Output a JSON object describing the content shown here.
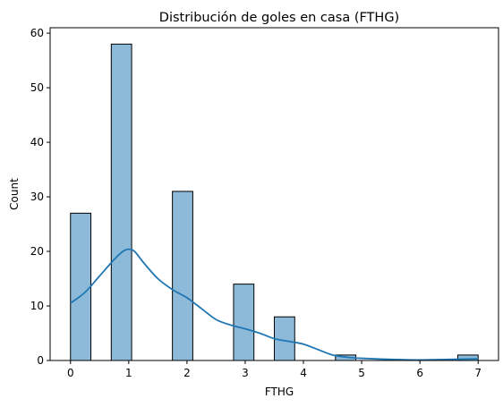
{
  "chart_data": {
    "type": "bar",
    "title": "Distribución de goles en casa (FTHG)",
    "xlabel": "FTHG",
    "ylabel": "Count",
    "xlim": [
      -0.35,
      7.35
    ],
    "ylim": [
      0,
      61
    ],
    "x_ticks": [
      "0",
      "1",
      "2",
      "3",
      "4",
      "5",
      "6",
      "7"
    ],
    "y_ticks": [
      "0",
      "10",
      "20",
      "30",
      "40",
      "50",
      "60"
    ],
    "bins": [
      {
        "x0": 0.0,
        "x1": 0.35,
        "count": 27
      },
      {
        "x0": 0.35,
        "x1": 0.7,
        "count": 0
      },
      {
        "x0": 0.7,
        "x1": 1.05,
        "count": 58
      },
      {
        "x0": 1.05,
        "x1": 1.4,
        "count": 0
      },
      {
        "x0": 1.4,
        "x1": 1.75,
        "count": 0
      },
      {
        "x0": 1.75,
        "x1": 2.1,
        "count": 31
      },
      {
        "x0": 2.1,
        "x1": 2.45,
        "count": 0
      },
      {
        "x0": 2.45,
        "x1": 2.8,
        "count": 0
      },
      {
        "x0": 2.8,
        "x1": 3.15,
        "count": 14
      },
      {
        "x0": 3.15,
        "x1": 3.5,
        "count": 0
      },
      {
        "x0": 3.5,
        "x1": 3.85,
        "count": 8
      },
      {
        "x0": 3.85,
        "x1": 4.2,
        "count": 0
      },
      {
        "x0": 4.2,
        "x1": 4.55,
        "count": 0
      },
      {
        "x0": 4.55,
        "x1": 4.9,
        "count": 1
      },
      {
        "x0": 4.9,
        "x1": 5.25,
        "count": 0
      },
      {
        "x0": 5.25,
        "x1": 5.6,
        "count": 0
      },
      {
        "x0": 5.6,
        "x1": 5.95,
        "count": 0
      },
      {
        "x0": 5.95,
        "x1": 6.3,
        "count": 0
      },
      {
        "x0": 6.3,
        "x1": 6.65,
        "count": 0
      },
      {
        "x0": 6.65,
        "x1": 7.0,
        "count": 1
      }
    ],
    "kde": {
      "x": [
        0.0,
        0.25,
        0.5,
        0.75,
        0.9,
        1.0,
        1.1,
        1.25,
        1.5,
        1.75,
        2.0,
        2.25,
        2.5,
        2.75,
        3.0,
        3.25,
        3.5,
        3.75,
        4.0,
        4.25,
        4.5,
        4.75,
        5.0,
        5.5,
        6.0,
        6.5,
        7.0
      ],
      "y": [
        10.5,
        12.5,
        15.5,
        18.5,
        20.0,
        20.4,
        20.0,
        18.0,
        15.0,
        13.0,
        11.5,
        9.5,
        7.5,
        6.5,
        5.8,
        5.0,
        4.0,
        3.5,
        3.0,
        2.0,
        1.0,
        0.6,
        0.4,
        0.2,
        0.1,
        0.2,
        0.3
      ]
    },
    "colors": {
      "bar_fill": "#8ebad9",
      "bar_edge": "#000000",
      "kde_line": "#1f77b4"
    },
    "grid": false,
    "legend": "none"
  }
}
